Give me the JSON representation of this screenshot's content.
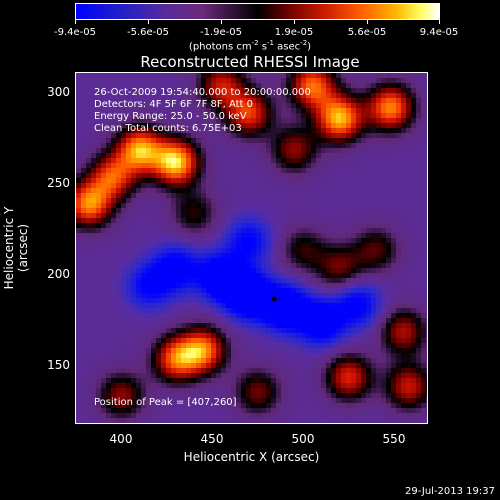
{
  "colorbar": {
    "ticks": [
      "-9.4e-05",
      "-5.6e-05",
      "-1.9e-05",
      "1.9e-05",
      "5.6e-05",
      "9.4e-05"
    ],
    "units_prefix": "(photons cm",
    "units_middle": " s",
    "units_middle2": " asec",
    "units_suffix": ")",
    "sup1": "-2",
    "sup2": "-1",
    "sup3": "-2",
    "range": [
      -9.4e-05,
      9.4e-05
    ]
  },
  "chart_data": {
    "type": "heatmap",
    "title": "Reconstructed RHESSI Image",
    "xlabel": "Heliocentric X (arcsec)",
    "ylabel": "Heliocentric Y (arcsec)",
    "xlim": [
      375,
      568
    ],
    "ylim": [
      115,
      307
    ],
    "xticks": [
      "400",
      "450",
      "500",
      "550"
    ],
    "yticks": [
      "150",
      "200",
      "250",
      "300"
    ],
    "annotations": [
      "26-Oct-2009 19:54:40.000 to 20:00:00.000",
      "Detectors: 4F 5F 6F 7F 8F, Att 0",
      "Energy Range: 25.0 - 50.0 keV",
      "Clean    Total counts: 6.75E+03"
    ],
    "peak_label": "Position of Peak = [407,260]",
    "blobs": [
      {
        "x": 430,
        "y": 258,
        "v": 1.0
      },
      {
        "x": 410,
        "y": 265,
        "v": 0.9
      },
      {
        "x": 382,
        "y": 235,
        "v": 0.85
      },
      {
        "x": 395,
        "y": 250,
        "v": 0.7
      },
      {
        "x": 520,
        "y": 282,
        "v": 0.95
      },
      {
        "x": 548,
        "y": 288,
        "v": 0.85
      },
      {
        "x": 505,
        "y": 300,
        "v": 0.8
      },
      {
        "x": 470,
        "y": 285,
        "v": 0.7
      },
      {
        "x": 455,
        "y": 300,
        "v": 0.6
      },
      {
        "x": 495,
        "y": 265,
        "v": 0.5
      },
      {
        "x": 445,
        "y": 155,
        "v": 0.8
      },
      {
        "x": 430,
        "y": 150,
        "v": 0.75
      },
      {
        "x": 525,
        "y": 140,
        "v": 0.65
      },
      {
        "x": 558,
        "y": 135,
        "v": 0.6
      },
      {
        "x": 555,
        "y": 165,
        "v": 0.55
      },
      {
        "x": 400,
        "y": 130,
        "v": 0.5
      },
      {
        "x": 520,
        "y": 200,
        "v": 0.45
      },
      {
        "x": 540,
        "y": 210,
        "v": 0.4
      },
      {
        "x": 500,
        "y": 210,
        "v": 0.35
      },
      {
        "x": 440,
        "y": 230,
        "v": 0.35
      },
      {
        "x": 475,
        "y": 132,
        "v": 0.45
      },
      {
        "x": 470,
        "y": 185,
        "v": -0.9
      },
      {
        "x": 490,
        "y": 178,
        "v": -0.85
      },
      {
        "x": 455,
        "y": 195,
        "v": -0.8
      },
      {
        "x": 510,
        "y": 170,
        "v": -0.7
      },
      {
        "x": 430,
        "y": 200,
        "v": -0.6
      },
      {
        "x": 530,
        "y": 180,
        "v": -0.55
      },
      {
        "x": 415,
        "y": 190,
        "v": -0.5
      },
      {
        "x": 470,
        "y": 215,
        "v": -0.5
      }
    ],
    "marker": {
      "x": 484,
      "y": 183
    }
  },
  "footer": "29-Jul-2013 19:37"
}
